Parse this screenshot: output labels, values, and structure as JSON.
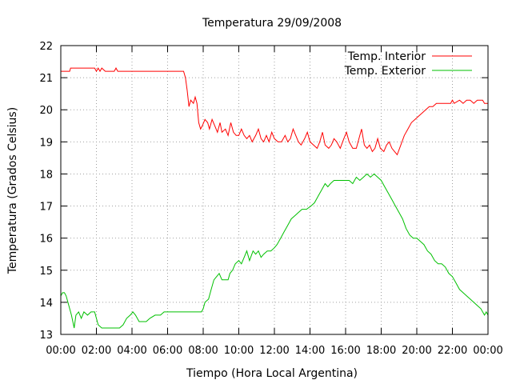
{
  "chart_data": {
    "type": "line",
    "title": "Temperatura 29/09/2008",
    "xlabel": "Tiempo (Hora Local Argentina)",
    "ylabel": "Temperatura (Grados Celsius)",
    "xlim": [
      0,
      24
    ],
    "ylim": [
      13,
      22
    ],
    "x_tick_labels": [
      "00:00",
      "02:00",
      "04:00",
      "06:00",
      "08:00",
      "10:00",
      "12:00",
      "14:00",
      "16:00",
      "18:00",
      "20:00",
      "22:00",
      "00:00"
    ],
    "y_tick_labels": [
      "13",
      "14",
      "15",
      "16",
      "17",
      "18",
      "19",
      "20",
      "21",
      "22"
    ],
    "grid": true,
    "legend_position": "top-right",
    "series": [
      {
        "name": "Temp. Interior",
        "color": "#ff0000",
        "points": [
          [
            0,
            21.2
          ],
          [
            0.5,
            21.2
          ],
          [
            0.55,
            21.3
          ],
          [
            1,
            21.3
          ],
          [
            1.5,
            21.3
          ],
          [
            1.9,
            21.3
          ],
          [
            2.0,
            21.2
          ],
          [
            2.1,
            21.3
          ],
          [
            2.2,
            21.2
          ],
          [
            2.3,
            21.3
          ],
          [
            2.5,
            21.2
          ],
          [
            3.0,
            21.2
          ],
          [
            3.1,
            21.3
          ],
          [
            3.2,
            21.2
          ],
          [
            4,
            21.2
          ],
          [
            5,
            21.2
          ],
          [
            6,
            21.2
          ],
          [
            6.9,
            21.2
          ],
          [
            7.0,
            21.0
          ],
          [
            7.1,
            20.6
          ],
          [
            7.2,
            20.1
          ],
          [
            7.3,
            20.3
          ],
          [
            7.45,
            20.2
          ],
          [
            7.55,
            20.4
          ],
          [
            7.65,
            20.2
          ],
          [
            7.75,
            19.6
          ],
          [
            7.85,
            19.4
          ],
          [
            7.95,
            19.5
          ],
          [
            8.1,
            19.7
          ],
          [
            8.25,
            19.6
          ],
          [
            8.35,
            19.4
          ],
          [
            8.5,
            19.7
          ],
          [
            8.65,
            19.5
          ],
          [
            8.8,
            19.3
          ],
          [
            8.95,
            19.6
          ],
          [
            9.05,
            19.3
          ],
          [
            9.25,
            19.4
          ],
          [
            9.4,
            19.2
          ],
          [
            9.55,
            19.6
          ],
          [
            9.7,
            19.3
          ],
          [
            9.85,
            19.2
          ],
          [
            10.0,
            19.2
          ],
          [
            10.15,
            19.4
          ],
          [
            10.3,
            19.2
          ],
          [
            10.45,
            19.1
          ],
          [
            10.6,
            19.2
          ],
          [
            10.75,
            19.0
          ],
          [
            10.95,
            19.2
          ],
          [
            11.1,
            19.4
          ],
          [
            11.25,
            19.1
          ],
          [
            11.4,
            19.0
          ],
          [
            11.55,
            19.2
          ],
          [
            11.7,
            19.0
          ],
          [
            11.85,
            19.3
          ],
          [
            12.0,
            19.1
          ],
          [
            12.2,
            19.0
          ],
          [
            12.4,
            19.0
          ],
          [
            12.6,
            19.2
          ],
          [
            12.75,
            19.0
          ],
          [
            12.9,
            19.1
          ],
          [
            13.05,
            19.4
          ],
          [
            13.2,
            19.2
          ],
          [
            13.35,
            19.0
          ],
          [
            13.5,
            18.9
          ],
          [
            13.7,
            19.1
          ],
          [
            13.85,
            19.3
          ],
          [
            14.0,
            19.0
          ],
          [
            14.2,
            18.9
          ],
          [
            14.4,
            18.8
          ],
          [
            14.55,
            19.0
          ],
          [
            14.7,
            19.3
          ],
          [
            14.85,
            18.9
          ],
          [
            15.05,
            18.8
          ],
          [
            15.2,
            18.9
          ],
          [
            15.35,
            19.1
          ],
          [
            15.5,
            19.0
          ],
          [
            15.7,
            18.8
          ],
          [
            15.9,
            19.1
          ],
          [
            16.05,
            19.3
          ],
          [
            16.2,
            19.0
          ],
          [
            16.4,
            18.8
          ],
          [
            16.6,
            18.8
          ],
          [
            16.75,
            19.1
          ],
          [
            16.9,
            19.4
          ],
          [
            17.05,
            18.9
          ],
          [
            17.2,
            18.8
          ],
          [
            17.35,
            18.9
          ],
          [
            17.5,
            18.7
          ],
          [
            17.65,
            18.8
          ],
          [
            17.8,
            19.1
          ],
          [
            17.95,
            18.8
          ],
          [
            18.15,
            18.7
          ],
          [
            18.3,
            18.9
          ],
          [
            18.45,
            19.0
          ],
          [
            18.6,
            18.8
          ],
          [
            18.75,
            18.7
          ],
          [
            18.9,
            18.6
          ],
          [
            19.1,
            18.9
          ],
          [
            19.3,
            19.2
          ],
          [
            19.5,
            19.4
          ],
          [
            19.7,
            19.6
          ],
          [
            19.9,
            19.7
          ],
          [
            20.1,
            19.8
          ],
          [
            20.3,
            19.9
          ],
          [
            20.5,
            20.0
          ],
          [
            20.7,
            20.1
          ],
          [
            20.9,
            20.1
          ],
          [
            21.1,
            20.2
          ],
          [
            21.5,
            20.2
          ],
          [
            21.9,
            20.2
          ],
          [
            22.0,
            20.3
          ],
          [
            22.1,
            20.2
          ],
          [
            22.4,
            20.3
          ],
          [
            22.6,
            20.2
          ],
          [
            22.8,
            20.3
          ],
          [
            23.0,
            20.3
          ],
          [
            23.2,
            20.2
          ],
          [
            23.4,
            20.3
          ],
          [
            23.7,
            20.3
          ],
          [
            23.8,
            20.2
          ],
          [
            24.0,
            20.2
          ]
        ]
      },
      {
        "name": "Temp. Exterior",
        "color": "#00c000",
        "points": [
          [
            0,
            14.2
          ],
          [
            0.1,
            14.3
          ],
          [
            0.2,
            14.3
          ],
          [
            0.3,
            14.2
          ],
          [
            0.45,
            13.9
          ],
          [
            0.6,
            13.6
          ],
          [
            0.75,
            13.2
          ],
          [
            0.85,
            13.6
          ],
          [
            1.0,
            13.7
          ],
          [
            1.15,
            13.5
          ],
          [
            1.3,
            13.7
          ],
          [
            1.5,
            13.6
          ],
          [
            1.7,
            13.7
          ],
          [
            1.9,
            13.7
          ],
          [
            2.0,
            13.5
          ],
          [
            2.1,
            13.3
          ],
          [
            2.3,
            13.2
          ],
          [
            2.6,
            13.2
          ],
          [
            3.0,
            13.2
          ],
          [
            3.3,
            13.2
          ],
          [
            3.5,
            13.3
          ],
          [
            3.7,
            13.5
          ],
          [
            3.9,
            13.6
          ],
          [
            4.05,
            13.7
          ],
          [
            4.2,
            13.6
          ],
          [
            4.4,
            13.4
          ],
          [
            4.8,
            13.4
          ],
          [
            5.0,
            13.5
          ],
          [
            5.3,
            13.6
          ],
          [
            5.6,
            13.6
          ],
          [
            5.8,
            13.7
          ],
          [
            6.2,
            13.7
          ],
          [
            7.0,
            13.7
          ],
          [
            7.5,
            13.7
          ],
          [
            7.9,
            13.7
          ],
          [
            8.0,
            13.8
          ],
          [
            8.1,
            14.0
          ],
          [
            8.3,
            14.1
          ],
          [
            8.45,
            14.4
          ],
          [
            8.6,
            14.7
          ],
          [
            8.75,
            14.8
          ],
          [
            8.9,
            14.9
          ],
          [
            9.05,
            14.7
          ],
          [
            9.2,
            14.7
          ],
          [
            9.4,
            14.7
          ],
          [
            9.5,
            14.9
          ],
          [
            9.65,
            15.0
          ],
          [
            9.8,
            15.2
          ],
          [
            10.0,
            15.3
          ],
          [
            10.15,
            15.2
          ],
          [
            10.3,
            15.4
          ],
          [
            10.45,
            15.6
          ],
          [
            10.6,
            15.3
          ],
          [
            10.8,
            15.6
          ],
          [
            10.95,
            15.5
          ],
          [
            11.1,
            15.6
          ],
          [
            11.25,
            15.4
          ],
          [
            11.4,
            15.5
          ],
          [
            11.6,
            15.6
          ],
          [
            11.8,
            15.6
          ],
          [
            12.0,
            15.7
          ],
          [
            12.15,
            15.8
          ],
          [
            12.35,
            16.0
          ],
          [
            12.55,
            16.2
          ],
          [
            12.75,
            16.4
          ],
          [
            12.95,
            16.6
          ],
          [
            13.15,
            16.7
          ],
          [
            13.35,
            16.8
          ],
          [
            13.55,
            16.9
          ],
          [
            13.8,
            16.9
          ],
          [
            14.05,
            17.0
          ],
          [
            14.25,
            17.1
          ],
          [
            14.45,
            17.3
          ],
          [
            14.65,
            17.5
          ],
          [
            14.85,
            17.7
          ],
          [
            15.0,
            17.6
          ],
          [
            15.15,
            17.7
          ],
          [
            15.35,
            17.8
          ],
          [
            15.6,
            17.8
          ],
          [
            15.9,
            17.8
          ],
          [
            16.2,
            17.8
          ],
          [
            16.4,
            17.7
          ],
          [
            16.6,
            17.9
          ],
          [
            16.8,
            17.8
          ],
          [
            17.0,
            17.9
          ],
          [
            17.2,
            18.0
          ],
          [
            17.4,
            17.9
          ],
          [
            17.6,
            18.0
          ],
          [
            17.8,
            17.9
          ],
          [
            18.0,
            17.8
          ],
          [
            18.2,
            17.6
          ],
          [
            18.4,
            17.4
          ],
          [
            18.6,
            17.2
          ],
          [
            18.8,
            17.0
          ],
          [
            19.0,
            16.8
          ],
          [
            19.2,
            16.6
          ],
          [
            19.4,
            16.3
          ],
          [
            19.6,
            16.1
          ],
          [
            19.8,
            16.0
          ],
          [
            20.0,
            16.0
          ],
          [
            20.2,
            15.9
          ],
          [
            20.4,
            15.8
          ],
          [
            20.6,
            15.6
          ],
          [
            20.8,
            15.5
          ],
          [
            21.0,
            15.3
          ],
          [
            21.2,
            15.2
          ],
          [
            21.4,
            15.2
          ],
          [
            21.6,
            15.1
          ],
          [
            21.8,
            14.9
          ],
          [
            22.0,
            14.8
          ],
          [
            22.2,
            14.6
          ],
          [
            22.4,
            14.4
          ],
          [
            22.6,
            14.3
          ],
          [
            22.8,
            14.2
          ],
          [
            23.0,
            14.1
          ],
          [
            23.2,
            14.0
          ],
          [
            23.4,
            13.9
          ],
          [
            23.6,
            13.8
          ],
          [
            23.8,
            13.6
          ],
          [
            23.9,
            13.7
          ],
          [
            24.0,
            13.6
          ]
        ]
      }
    ]
  }
}
